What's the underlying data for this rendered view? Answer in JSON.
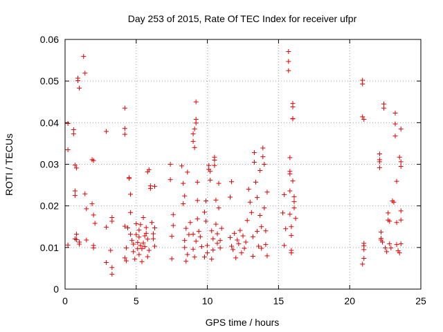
{
  "chart_data": {
    "type": "scatter",
    "title": "Day 253 of 2015, Rate Of TEC Index for receiver ufpr",
    "xlabel": "GPS time / hours",
    "ylabel": "ROTI / TECUs",
    "xlim": [
      0,
      25
    ],
    "ylim": [
      0,
      0.06
    ],
    "xticks": [
      0,
      5,
      10,
      15,
      20,
      25
    ],
    "xtick_labels": [
      "0",
      "5",
      "10",
      "15",
      "20",
      "25"
    ],
    "yticks": [
      0,
      0.01,
      0.02,
      0.03,
      0.04,
      0.05,
      0.06
    ],
    "ytick_labels": [
      "0",
      "0.01",
      "0.02",
      "0.03",
      "0.04",
      "0.05",
      "0.06"
    ],
    "grid": true,
    "marker": "plus",
    "color": "#e00000",
    "series": [
      {
        "points": [
          [
            0.2,
            0.0335
          ],
          [
            0.2,
            0.0398
          ],
          [
            0.2,
            0.0106
          ],
          [
            0.6,
            0.0383
          ],
          [
            0.6,
            0.0373
          ],
          [
            0.7,
            0.0298
          ],
          [
            0.7,
            0.0236
          ],
          [
            0.7,
            0.0225
          ],
          [
            0.7,
            0.0121
          ],
          [
            0.8,
            0.0119
          ],
          [
            0.8,
            0.0132
          ],
          [
            0.8,
            0.0291
          ],
          [
            0.9,
            0.0507
          ],
          [
            0.9,
            0.0501
          ],
          [
            1.0,
            0.0483
          ],
          [
            1.0,
            0.0108
          ],
          [
            1.0,
            0.0113
          ],
          [
            1.3,
            0.0559
          ],
          [
            1.4,
            0.0519
          ],
          [
            1.4,
            0.0229
          ],
          [
            1.5,
            0.0118
          ],
          [
            1.5,
            0.0193
          ],
          [
            1.9,
            0.0311
          ],
          [
            2.0,
            0.0309
          ],
          [
            1.9,
            0.0205
          ],
          [
            2.0,
            0.0178
          ],
          [
            2.0,
            0.0105
          ],
          [
            2.0,
            0.0099
          ],
          [
            2.1,
            0.0158
          ],
          [
            2.9,
            0.0379
          ],
          [
            2.9,
            0.0064
          ],
          [
            2.9,
            0.0149
          ],
          [
            3.2,
            0.0093
          ],
          [
            3.3,
            0.0052
          ],
          [
            3.3,
            0.0036
          ],
          [
            3.3,
            0.0163
          ],
          [
            3.3,
            0.0172
          ],
          [
            4.2,
            0.0435
          ],
          [
            4.2,
            0.0386
          ],
          [
            4.2,
            0.0372
          ],
          [
            4.2,
            0.0151
          ],
          [
            4.3,
            0.0099
          ],
          [
            4.2,
            0.0075
          ],
          [
            4.3,
            0.0068
          ],
          [
            4.4,
            0.0147
          ],
          [
            4.5,
            0.0266
          ],
          [
            4.5,
            0.0268
          ],
          [
            4.6,
            0.0228
          ],
          [
            4.6,
            0.0184
          ],
          [
            4.6,
            0.0132
          ],
          [
            4.7,
            0.0117
          ],
          [
            4.8,
            0.009
          ],
          [
            4.8,
            0.0108
          ],
          [
            4.9,
            0.0072
          ],
          [
            5.0,
            0.0131
          ],
          [
            5.1,
            0.0097
          ],
          [
            5.2,
            0.0125
          ],
          [
            5.2,
            0.0142
          ],
          [
            5.2,
            0.0083
          ],
          [
            5.3,
            0.0155
          ],
          [
            5.4,
            0.0066
          ],
          [
            5.5,
            0.0111
          ],
          [
            5.5,
            0.0172
          ],
          [
            5.6,
            0.0102
          ],
          [
            5.7,
            0.0148
          ],
          [
            5.7,
            0.0134
          ],
          [
            5.8,
            0.012
          ],
          [
            5.9,
            0.0093
          ],
          [
            5.8,
            0.0078
          ],
          [
            5.9,
            0.0287
          ],
          [
            5.8,
            0.0282
          ],
          [
            6.0,
            0.0248
          ],
          [
            6.0,
            0.0242
          ],
          [
            6.1,
            0.016
          ],
          [
            6.2,
            0.0133
          ],
          [
            6.2,
            0.0121
          ],
          [
            6.3,
            0.0147
          ],
          [
            6.3,
            0.0103
          ],
          [
            6.3,
            0.0247
          ],
          [
            5.0,
            0.0157
          ],
          [
            5.1,
            0.0112
          ],
          [
            5.3,
            0.0105
          ],
          [
            5.4,
            0.0097
          ],
          [
            5.6,
            0.0128
          ],
          [
            7.4,
            0.03
          ],
          [
            7.4,
            0.0263
          ],
          [
            7.5,
            0.0127
          ],
          [
            7.5,
            0.0073
          ],
          [
            7.6,
            0.0179
          ],
          [
            7.6,
            0.0153
          ],
          [
            8.2,
            0.0296
          ],
          [
            8.3,
            0.0254
          ],
          [
            8.3,
            0.0205
          ],
          [
            8.4,
            0.0224
          ],
          [
            8.4,
            0.0117
          ],
          [
            8.4,
            0.01
          ],
          [
            8.5,
            0.0067
          ],
          [
            8.5,
            0.0146
          ],
          [
            8.6,
            0.0281
          ],
          [
            8.6,
            0.0083
          ],
          [
            8.7,
            0.0131
          ],
          [
            8.8,
            0.016
          ],
          [
            9.0,
            0.0373
          ],
          [
            9.0,
            0.0355
          ],
          [
            9.1,
            0.0385
          ],
          [
            9.1,
            0.034
          ],
          [
            9.2,
            0.045
          ],
          [
            9.2,
            0.0408
          ],
          [
            9.2,
            0.0399
          ],
          [
            9.0,
            0.0132
          ],
          [
            9.0,
            0.0096
          ],
          [
            9.1,
            0.0077
          ],
          [
            9.2,
            0.0115
          ],
          [
            9.3,
            0.0169
          ],
          [
            9.3,
            0.0257
          ],
          [
            9.3,
            0.0213
          ],
          [
            9.4,
            0.0139
          ],
          [
            9.5,
            0.0126
          ],
          [
            9.6,
            0.0102
          ],
          [
            9.8,
            0.0185
          ],
          [
            9.9,
            0.0212
          ],
          [
            9.9,
            0.0163
          ],
          [
            10.0,
            0.0105
          ],
          [
            10.0,
            0.0087
          ],
          [
            10.1,
            0.0297
          ],
          [
            10.1,
            0.0288
          ],
          [
            10.2,
            0.0283
          ],
          [
            10.2,
            0.0262
          ],
          [
            10.3,
            0.014
          ],
          [
            10.4,
            0.0121
          ],
          [
            10.4,
            0.0094
          ],
          [
            10.5,
            0.0317
          ],
          [
            10.5,
            0.031
          ],
          [
            10.5,
            0.0297
          ],
          [
            10.6,
            0.0214
          ],
          [
            10.6,
            0.0156
          ],
          [
            10.7,
            0.0133
          ],
          [
            10.7,
            0.011
          ],
          [
            10.8,
            0.0254
          ],
          [
            10.8,
            0.0195
          ],
          [
            10.9,
            0.0117
          ],
          [
            10.9,
            0.0099
          ],
          [
            11.0,
            0.0146
          ],
          [
            10.3,
            0.0072
          ],
          [
            9.8,
            0.0077
          ],
          [
            11.6,
            0.0221
          ],
          [
            11.7,
            0.0258
          ],
          [
            11.6,
            0.0124
          ],
          [
            11.7,
            0.0103
          ],
          [
            11.8,
            0.0095
          ],
          [
            11.9,
            0.0134
          ],
          [
            12.0,
            0.0075
          ],
          [
            12.1,
            0.0118
          ],
          [
            12.2,
            0.0109
          ],
          [
            12.3,
            0.0141
          ],
          [
            12.4,
            0.0087
          ],
          [
            12.5,
            0.0128
          ],
          [
            12.6,
            0.0098
          ],
          [
            12.7,
            0.0113
          ],
          [
            12.8,
            0.0165
          ],
          [
            12.9,
            0.024
          ],
          [
            13.0,
            0.0209
          ],
          [
            13.1,
            0.0184
          ],
          [
            13.2,
            0.0126
          ],
          [
            13.2,
            0.0079
          ],
          [
            13.3,
            0.0328
          ],
          [
            13.3,
            0.0305
          ],
          [
            13.4,
            0.0257
          ],
          [
            13.5,
            0.022
          ],
          [
            13.5,
            0.0139
          ],
          [
            13.6,
            0.0103
          ],
          [
            13.7,
            0.0285
          ],
          [
            13.7,
            0.0177
          ],
          [
            13.8,
            0.0098
          ],
          [
            13.9,
            0.0339
          ],
          [
            13.9,
            0.0318
          ],
          [
            14.0,
            0.03
          ],
          [
            14.0,
            0.0195
          ],
          [
            14.1,
            0.014
          ],
          [
            14.1,
            0.0107
          ],
          [
            14.2,
            0.0233
          ],
          [
            14.2,
            0.008
          ],
          [
            13.8,
            0.015
          ],
          [
            15.3,
            0.0183
          ],
          [
            15.4,
            0.0227
          ],
          [
            15.4,
            0.0105
          ],
          [
            15.5,
            0.0145
          ],
          [
            15.7,
            0.0571
          ],
          [
            15.7,
            0.0547
          ],
          [
            15.7,
            0.0525
          ],
          [
            15.8,
            0.0316
          ],
          [
            15.8,
            0.0277
          ],
          [
            15.8,
            0.0283
          ],
          [
            15.8,
            0.0236
          ],
          [
            15.8,
            0.018
          ],
          [
            15.9,
            0.0129
          ],
          [
            15.9,
            0.0093
          ],
          [
            15.9,
            0.0087
          ],
          [
            16.0,
            0.0446
          ],
          [
            16.0,
            0.0438
          ],
          [
            16.0,
            0.041
          ],
          [
            16.0,
            0.0409
          ],
          [
            16.0,
            0.026
          ],
          [
            16.1,
            0.0222
          ],
          [
            16.1,
            0.021
          ],
          [
            16.1,
            0.0195
          ],
          [
            16.2,
            0.017
          ],
          [
            15.9,
            0.015
          ],
          [
            20.9,
            0.0502
          ],
          [
            20.9,
            0.0493
          ],
          [
            20.9,
            0.0414
          ],
          [
            21.0,
            0.0408
          ],
          [
            21.0,
            0.011
          ],
          [
            21.0,
            0.0104
          ],
          [
            21.0,
            0.0095
          ],
          [
            21.0,
            0.0074
          ],
          [
            20.9,
            0.006
          ],
          [
            22.1,
            0.0325
          ],
          [
            22.1,
            0.0311
          ],
          [
            22.1,
            0.0306
          ],
          [
            22.1,
            0.0292
          ],
          [
            22.2,
            0.0137
          ],
          [
            22.2,
            0.0122
          ],
          [
            22.2,
            0.0118
          ],
          [
            22.3,
            0.0113
          ],
          [
            22.4,
            0.0445
          ],
          [
            22.4,
            0.0435
          ],
          [
            22.5,
            0.0099
          ],
          [
            22.6,
            0.009
          ],
          [
            22.7,
            0.0183
          ],
          [
            22.7,
            0.0166
          ],
          [
            22.8,
            0.0163
          ],
          [
            22.8,
            0.0109
          ],
          [
            22.9,
            0.0099
          ],
          [
            23.0,
            0.0212
          ],
          [
            23.1,
            0.0209
          ],
          [
            23.2,
            0.0423
          ],
          [
            23.2,
            0.0397
          ],
          [
            23.2,
            0.0368
          ],
          [
            23.3,
            0.0259
          ],
          [
            23.3,
            0.016
          ],
          [
            23.3,
            0.0107
          ],
          [
            23.4,
            0.0092
          ],
          [
            23.5,
            0.0087
          ],
          [
            23.5,
            0.0317
          ],
          [
            23.6,
            0.0306
          ],
          [
            23.6,
            0.0295
          ],
          [
            23.6,
            0.0385
          ],
          [
            23.6,
            0.0188
          ],
          [
            23.6,
            0.0166
          ],
          [
            23.6,
            0.0109
          ]
        ]
      }
    ]
  }
}
